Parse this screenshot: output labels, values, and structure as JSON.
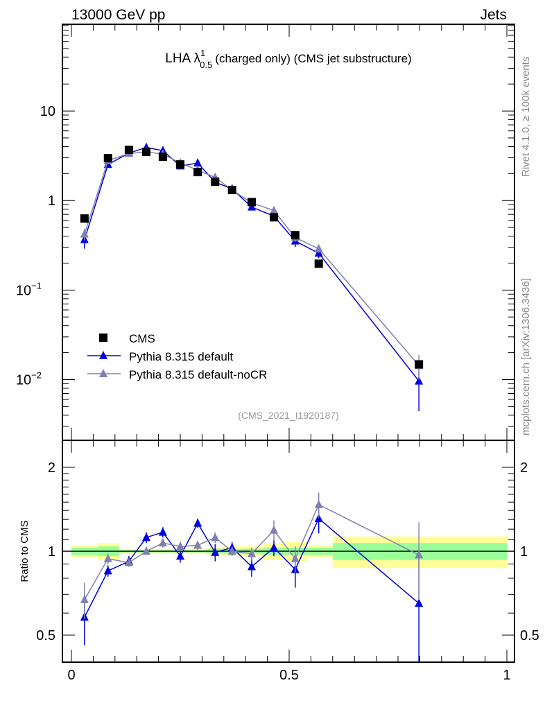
{
  "header": {
    "left": "13000 GeV pp",
    "right": "Jets"
  },
  "side": {
    "rivet": "Rivet 4.1.0, ≥ 100k events",
    "mcplots": "mcplots.cern.ch [arXiv:1306.3436]"
  },
  "chart_data": {
    "type": "scatter",
    "title": {
      "main": "LHA λ",
      "sup": "1",
      "sub": "0.5",
      "rest": "(charged only) (CMS jet substructure)"
    },
    "analysis": "(CMS_2021_I1920187)",
    "ylabel_ratio": "Ratio to CMS",
    "xlim": [
      0,
      1
    ],
    "ylim": [
      0.0021,
      93
    ],
    "ratio_ylim": [
      0.4,
      2.5
    ],
    "yscale": "log",
    "ratio_yscale": "log",
    "x_ticks": [
      {
        "v": 0,
        "label": "0"
      },
      {
        "v": 0.5,
        "label": "0.5"
      },
      {
        "v": 1,
        "label": "1"
      }
    ],
    "y_ticks": [
      {
        "v": 10,
        "label": "10"
      },
      {
        "v": 1,
        "label": "1"
      },
      {
        "v": 0.1,
        "label": "10",
        "exp": "−1"
      },
      {
        "v": 0.01,
        "label": "10",
        "exp": "−2"
      }
    ],
    "ratio_ticks": [
      {
        "v": 0.5,
        "label": "0.5"
      },
      {
        "v": 1,
        "label": "1"
      },
      {
        "v": 2,
        "label": "2"
      }
    ],
    "legend_position": "bottom-left",
    "bin_edges": [
      0,
      0.06,
      0.11,
      0.15,
      0.19,
      0.23,
      0.27,
      0.31,
      0.35,
      0.39,
      0.44,
      0.49,
      0.54,
      0.6,
      1.0
    ],
    "x": [
      0.03,
      0.084,
      0.132,
      0.172,
      0.21,
      0.25,
      0.29,
      0.33,
      0.369,
      0.414,
      0.465,
      0.514,
      0.568,
      0.798
    ],
    "data": {
      "name": "CMS",
      "color": "#000000",
      "values": [
        0.63,
        2.97,
        3.68,
        3.5,
        3.08,
        2.53,
        2.08,
        1.62,
        1.31,
        0.96,
        0.65,
        0.41,
        0.197,
        0.0148
      ],
      "stat_rel": [
        0.03,
        0.04,
        0.01,
        0.01,
        0.01,
        0.01,
        0.01,
        0.02,
        0.02,
        0.02,
        0.03,
        0.03,
        0.03,
        0.07
      ],
      "total_rel": [
        0.05,
        0.07,
        0.02,
        0.02,
        0.02,
        0.02,
        0.02,
        0.03,
        0.04,
        0.04,
        0.07,
        0.08,
        0.05,
        0.13
      ]
    },
    "series": [
      {
        "name": "Pythia 8.315 default",
        "color": "#0000dd",
        "ratio": [
          0.58,
          0.85,
          0.92,
          1.12,
          1.17,
          0.96,
          1.26,
          0.99,
          1.03,
          0.88,
          1.03,
          0.86,
          1.31,
          0.65
        ],
        "ratio_err": [
          0.12,
          0.04,
          0.04,
          0.05,
          0.05,
          0.05,
          0.05,
          0.07,
          0.05,
          0.07,
          0.07,
          0.12,
          0.15,
          0.35
        ]
      },
      {
        "name": "Pythia 8.315 default-noCR",
        "color": "#8080b0",
        "ratio": [
          0.67,
          0.94,
          0.91,
          1.0,
          1.07,
          1.04,
          1.05,
          1.12,
          1.0,
          0.98,
          1.19,
          0.94,
          1.47,
          0.97
        ],
        "ratio_err": [
          0.1,
          0.04,
          0.03,
          0.03,
          0.04,
          0.04,
          0.04,
          0.05,
          0.04,
          0.05,
          0.1,
          0.1,
          0.15,
          0.3
        ]
      }
    ],
    "band_colors": {
      "stat": "#99ff99",
      "total": "#ffff99"
    }
  }
}
